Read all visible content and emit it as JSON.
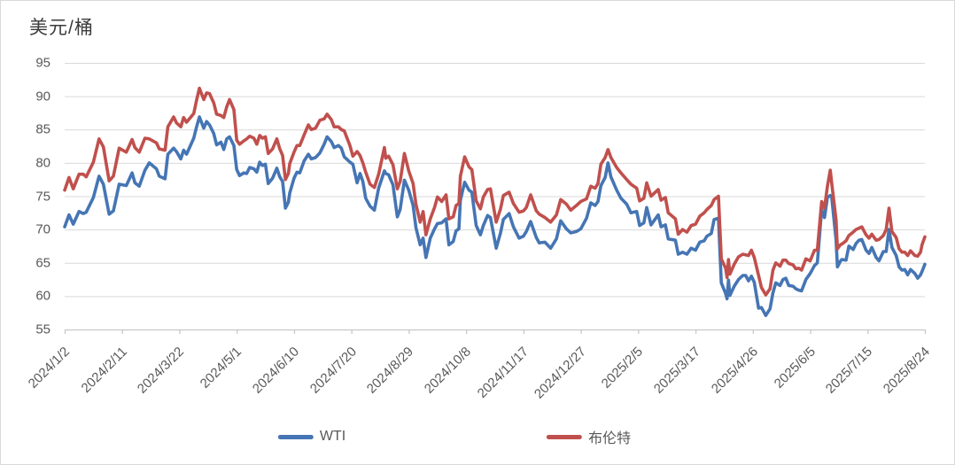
{
  "chart_data": {
    "type": "line",
    "title": "美元/桶",
    "grid": "horizontal",
    "legend_position": "bottom",
    "colors": {
      "wti": "#4575b4",
      "brent": "#c0504d",
      "gridline": "#d9d9d9",
      "axis": "#c9c9c9",
      "tick_text": "#595959",
      "title_text": "#3b3b3b",
      "background": "#ffffff",
      "frame_border": "#d9d9d9"
    },
    "y_axis": {
      "min": 55,
      "max": 95,
      "step": 5,
      "ticks": [
        55,
        60,
        65,
        70,
        75,
        80,
        85,
        90,
        95
      ]
    },
    "x_axis": {
      "day_span": 600,
      "tick_days": [
        0,
        40,
        80,
        120,
        160,
        200,
        240,
        280,
        320,
        360,
        400,
        440,
        480,
        520,
        560,
        600
      ],
      "tick_labels": [
        "2024/1/2",
        "2024/2/11",
        "2024/3/22",
        "2024/5/1",
        "2024/6/10",
        "2024/7/20",
        "2024/8/29",
        "2024/10/8",
        "2024/11/17",
        "2024/12/27",
        "2025/2/5",
        "2025/3/17",
        "2025/4/26",
        "2025/6/5",
        "2025/7/15",
        "2025/8/24"
      ]
    },
    "series": [
      {
        "name": "WTI",
        "color": "#4575b4",
        "point_index": 1
      },
      {
        "name": "布伦特",
        "color": "#c0504d",
        "point_index": 2
      }
    ],
    "points_format": [
      "day_offset_from_2024_1_2",
      "wti_usd_per_barrel",
      "brent_usd_per_barrel"
    ],
    "points": [
      [
        0,
        70.4,
        75.9
      ],
      [
        3,
        72.2,
        77.8
      ],
      [
        6,
        70.8,
        76.1
      ],
      [
        10,
        72.7,
        78.3
      ],
      [
        13,
        72.4,
        78.3
      ],
      [
        15,
        72.6,
        77.9
      ],
      [
        20,
        74.8,
        80.1
      ],
      [
        24,
        78.0,
        83.6
      ],
      [
        27,
        76.8,
        82.4
      ],
      [
        31,
        72.3,
        77.3
      ],
      [
        34,
        72.8,
        78.0
      ],
      [
        38,
        76.8,
        82.2
      ],
      [
        43,
        76.6,
        81.6
      ],
      [
        47,
        78.5,
        83.5
      ],
      [
        49,
        77.0,
        82.3
      ],
      [
        52,
        76.5,
        81.6
      ],
      [
        56,
        78.9,
        83.7
      ],
      [
        59,
        80.0,
        83.6
      ],
      [
        64,
        79.1,
        83.0
      ],
      [
        66,
        78.0,
        82.1
      ],
      [
        70,
        77.6,
        81.9
      ],
      [
        72,
        81.3,
        85.4
      ],
      [
        76,
        82.2,
        86.9
      ],
      [
        78,
        81.7,
        86.0
      ],
      [
        81,
        80.6,
        85.4
      ],
      [
        83,
        81.9,
        86.8
      ],
      [
        85,
        81.3,
        86.1
      ],
      [
        90,
        83.7,
        87.4
      ],
      [
        92,
        85.4,
        89.4
      ],
      [
        94,
        86.9,
        91.2
      ],
      [
        97,
        85.2,
        89.5
      ],
      [
        99,
        86.2,
        90.5
      ],
      [
        101,
        85.7,
        90.4
      ],
      [
        104,
        84.4,
        89.0
      ],
      [
        106,
        82.7,
        87.3
      ],
      [
        109,
        83.1,
        87.1
      ],
      [
        111,
        82.0,
        86.8
      ],
      [
        113,
        83.6,
        88.4
      ],
      [
        115,
        83.9,
        89.5
      ],
      [
        118,
        82.6,
        88.0
      ],
      [
        120,
        79.0,
        83.4
      ],
      [
        122,
        78.1,
        82.8
      ],
      [
        125,
        78.5,
        83.3
      ],
      [
        127,
        78.4,
        83.6
      ],
      [
        129,
        79.3,
        84.0
      ],
      [
        132,
        79.1,
        83.7
      ],
      [
        134,
        78.6,
        82.8
      ],
      [
        136,
        80.1,
        84.1
      ],
      [
        138,
        79.6,
        83.7
      ],
      [
        140,
        79.8,
        83.9
      ],
      [
        142,
        76.9,
        81.4
      ],
      [
        145,
        77.7,
        82.1
      ],
      [
        148,
        79.2,
        83.6
      ],
      [
        150,
        77.9,
        82.1
      ],
      [
        152,
        77.2,
        81.1
      ],
      [
        154,
        73.2,
        77.5
      ],
      [
        156,
        74.1,
        78.4
      ],
      [
        157,
        75.5,
        79.9
      ],
      [
        160,
        77.7,
        81.6
      ],
      [
        162,
        78.6,
        82.6
      ],
      [
        164,
        78.5,
        82.6
      ],
      [
        167,
        80.3,
        84.2
      ],
      [
        170,
        81.3,
        85.7
      ],
      [
        172,
        80.6,
        85.0
      ],
      [
        175,
        80.8,
        85.2
      ],
      [
        178,
        81.5,
        86.4
      ],
      [
        181,
        82.8,
        86.6
      ],
      [
        183,
        83.9,
        87.3
      ],
      [
        186,
        83.2,
        86.5
      ],
      [
        188,
        82.3,
        85.4
      ],
      [
        191,
        82.6,
        85.4
      ],
      [
        193,
        82.2,
        85.0
      ],
      [
        195,
        80.9,
        84.8
      ],
      [
        199,
        80.1,
        82.6
      ],
      [
        201,
        79.8,
        81.0
      ],
      [
        204,
        77.0,
        81.7
      ],
      [
        206,
        78.4,
        81.1
      ],
      [
        208,
        77.2,
        80.0
      ],
      [
        210,
        74.7,
        78.6
      ],
      [
        213,
        73.5,
        76.8
      ],
      [
        216,
        72.9,
        76.3
      ],
      [
        219,
        76.2,
        78.3
      ],
      [
        223,
        78.8,
        82.3
      ],
      [
        224,
        78.4,
        80.7
      ],
      [
        226,
        78.2,
        81.0
      ],
      [
        229,
        76.7,
        79.7
      ],
      [
        232,
        71.9,
        76.1
      ],
      [
        234,
        73.0,
        77.2
      ],
      [
        237,
        77.4,
        81.4
      ],
      [
        240,
        75.9,
        78.8
      ],
      [
        243,
        73.6,
        76.9
      ],
      [
        245,
        70.3,
        73.8
      ],
      [
        248,
        67.7,
        71.1
      ],
      [
        250,
        68.7,
        72.7
      ],
      [
        252,
        65.8,
        69.2
      ],
      [
        255,
        68.7,
        71.6
      ],
      [
        258,
        70.1,
        73.3
      ],
      [
        260,
        70.9,
        74.9
      ],
      [
        263,
        71.0,
        74.2
      ],
      [
        266,
        71.6,
        75.2
      ],
      [
        268,
        67.7,
        71.6
      ],
      [
        271,
        68.2,
        71.9
      ],
      [
        273,
        69.8,
        73.6
      ],
      [
        275,
        70.1,
        73.9
      ],
      [
        276,
        74.4,
        78.0
      ],
      [
        279,
        77.1,
        80.9
      ],
      [
        282,
        75.9,
        79.4
      ],
      [
        284,
        75.6,
        79.0
      ],
      [
        287,
        70.6,
        74.3
      ],
      [
        290,
        69.2,
        73.1
      ],
      [
        292,
        70.6,
        74.9
      ],
      [
        295,
        72.1,
        76.0
      ],
      [
        297,
        71.8,
        76.1
      ],
      [
        301,
        67.2,
        71.1
      ],
      [
        304,
        69.5,
        73.1
      ],
      [
        306,
        71.5,
        75.1
      ],
      [
        310,
        72.4,
        75.6
      ],
      [
        313,
        70.4,
        73.9
      ],
      [
        317,
        68.7,
        72.6
      ],
      [
        320,
        69.0,
        72.8
      ],
      [
        322,
        69.7,
        73.3
      ],
      [
        325,
        71.2,
        75.2
      ],
      [
        329,
        68.8,
        72.8
      ],
      [
        331,
        68.0,
        72.3
      ],
      [
        335,
        68.1,
        71.8
      ],
      [
        339,
        67.2,
        71.1
      ],
      [
        343,
        68.6,
        72.2
      ],
      [
        346,
        71.3,
        74.5
      ],
      [
        350,
        70.1,
        73.8
      ],
      [
        353,
        69.5,
        72.9
      ],
      [
        357,
        69.7,
        73.6
      ],
      [
        360,
        70.1,
        74.2
      ],
      [
        364,
        71.7,
        74.6
      ],
      [
        367,
        74.0,
        76.5
      ],
      [
        370,
        73.6,
        76.2
      ],
      [
        372,
        74.2,
        76.9
      ],
      [
        374,
        76.6,
        79.8
      ],
      [
        377,
        77.8,
        80.8
      ],
      [
        379,
        80.0,
        82.0
      ],
      [
        381,
        77.9,
        80.8
      ],
      [
        385,
        75.9,
        79.3
      ],
      [
        388,
        74.7,
        78.5
      ],
      [
        392,
        73.8,
        77.5
      ],
      [
        395,
        72.5,
        76.8
      ],
      [
        399,
        72.7,
        76.2
      ],
      [
        401,
        70.6,
        74.3
      ],
      [
        404,
        71.0,
        74.7
      ],
      [
        406,
        73.3,
        77.0
      ],
      [
        409,
        70.7,
        75.0
      ],
      [
        414,
        72.2,
        76.0
      ],
      [
        416,
        70.4,
        74.4
      ],
      [
        419,
        70.7,
        74.8
      ],
      [
        421,
        68.6,
        72.5
      ],
      [
        426,
        68.4,
        71.6
      ],
      [
        428,
        66.3,
        69.3
      ],
      [
        431,
        66.6,
        70.0
      ],
      [
        434,
        66.3,
        69.6
      ],
      [
        437,
        67.2,
        70.6
      ],
      [
        440,
        66.9,
        70.8
      ],
      [
        443,
        68.1,
        72.0
      ],
      [
        446,
        68.3,
        72.5
      ],
      [
        448,
        69.0,
        73.0
      ],
      [
        451,
        69.4,
        73.6
      ],
      [
        453,
        71.5,
        74.5
      ],
      [
        456,
        71.7,
        75.0
      ],
      [
        458,
        62.0,
        65.6
      ],
      [
        461,
        60.4,
        64.2
      ],
      [
        462,
        59.6,
        62.8
      ],
      [
        463,
        62.4,
        65.5
      ],
      [
        464,
        60.1,
        63.3
      ],
      [
        467,
        61.5,
        64.8
      ],
      [
        470,
        62.5,
        65.9
      ],
      [
        473,
        63.1,
        66.3
      ],
      [
        475,
        63.1,
        66.2
      ],
      [
        477,
        62.3,
        66.1
      ],
      [
        479,
        63.0,
        66.9
      ],
      [
        481,
        62.1,
        65.8
      ],
      [
        484,
        58.2,
        63.1
      ],
      [
        486,
        58.3,
        61.3
      ],
      [
        489,
        57.1,
        60.2
      ],
      [
        492,
        58.1,
        61.1
      ],
      [
        494,
        60.5,
        63.9
      ],
      [
        496,
        62.0,
        65.0
      ],
      [
        499,
        61.6,
        64.5
      ],
      [
        501,
        62.5,
        65.4
      ],
      [
        503,
        62.7,
        65.4
      ],
      [
        505,
        61.6,
        64.9
      ],
      [
        508,
        61.5,
        64.7
      ],
      [
        510,
        61.1,
        64.1
      ],
      [
        512,
        60.9,
        64.2
      ],
      [
        514,
        60.8,
        63.9
      ],
      [
        517,
        62.5,
        65.6
      ],
      [
        520,
        63.4,
        65.3
      ],
      [
        523,
        64.6,
        66.9
      ],
      [
        525,
        65.0,
        66.9
      ],
      [
        528,
        73.0,
        74.2
      ],
      [
        530,
        71.8,
        73.2
      ],
      [
        532,
        74.8,
        76.5
      ],
      [
        534,
        75.1,
        78.9
      ],
      [
        535,
        74.9,
        77.0
      ],
      [
        538,
        68.5,
        71.5
      ],
      [
        539,
        64.4,
        67.1
      ],
      [
        541,
        65.2,
        67.7
      ],
      [
        542,
        65.5,
        67.8
      ],
      [
        545,
        65.4,
        68.3
      ],
      [
        547,
        67.5,
        69.1
      ],
      [
        550,
        67.0,
        69.6
      ],
      [
        552,
        67.9,
        70.0
      ],
      [
        554,
        68.4,
        70.2
      ],
      [
        556,
        68.5,
        70.4
      ],
      [
        559,
        66.9,
        69.2
      ],
      [
        561,
        66.4,
        68.7
      ],
      [
        563,
        67.3,
        69.3
      ],
      [
        566,
        65.8,
        68.4
      ],
      [
        568,
        65.3,
        68.5
      ],
      [
        571,
        66.7,
        69.1
      ],
      [
        573,
        66.7,
        70.0
      ],
      [
        575,
        70.0,
        73.2
      ],
      [
        577,
        67.3,
        69.7
      ],
      [
        580,
        66.1,
        68.8
      ],
      [
        582,
        64.4,
        67.1
      ],
      [
        584,
        63.9,
        66.6
      ],
      [
        586,
        64.0,
        66.6
      ],
      [
        588,
        63.2,
        66.1
      ],
      [
        590,
        64.0,
        66.8
      ],
      [
        593,
        63.4,
        66.1
      ],
      [
        595,
        62.7,
        66.0
      ],
      [
        597,
        63.2,
        66.6
      ],
      [
        598,
        63.7,
        67.7
      ],
      [
        600,
        64.8,
        68.9
      ]
    ]
  }
}
